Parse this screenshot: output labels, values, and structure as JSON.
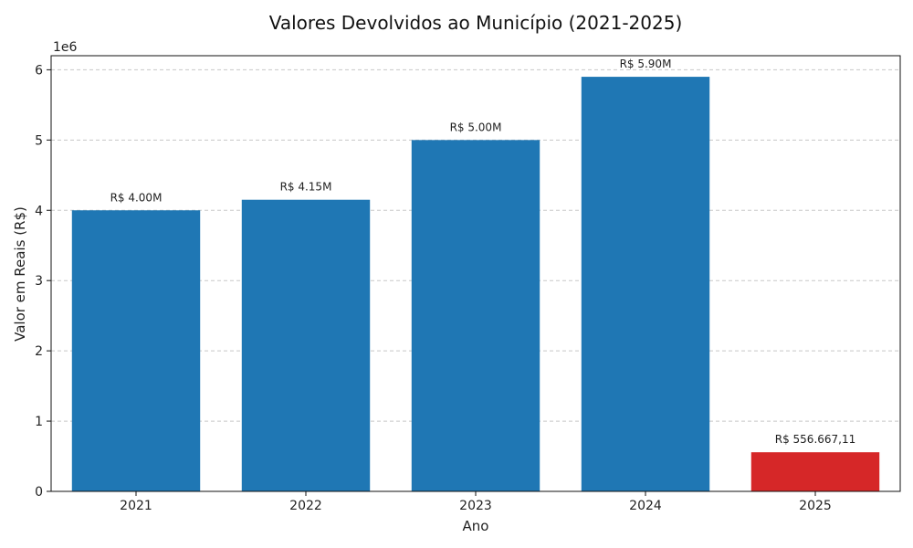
{
  "chart_data": {
    "type": "bar",
    "title": "Valores Devolvidos ao Município (2021-2025)",
    "xlabel": "Ano",
    "ylabel": "Valor em Reais (R$)",
    "y_offset_label": "1e6",
    "categories": [
      "2021",
      "2022",
      "2023",
      "2024",
      "2025"
    ],
    "values": [
      4000000,
      4150000,
      5000000,
      5900000,
      556667.11
    ],
    "data_labels": [
      "R$ 4.00M",
      "R$ 4.15M",
      "R$ 5.00M",
      "R$ 5.90M",
      "R$ 556.667,11"
    ],
    "colors": [
      "#1f77b4",
      "#1f77b4",
      "#1f77b4",
      "#1f77b4",
      "#d62728"
    ],
    "ylim": [
      0,
      6200000
    ],
    "yticks": [
      0,
      1000000,
      2000000,
      3000000,
      4000000,
      5000000,
      6000000
    ],
    "ytick_labels": [
      "0",
      "1",
      "2",
      "3",
      "4",
      "5",
      "6"
    ],
    "grid": true,
    "grid_axis": "y"
  }
}
